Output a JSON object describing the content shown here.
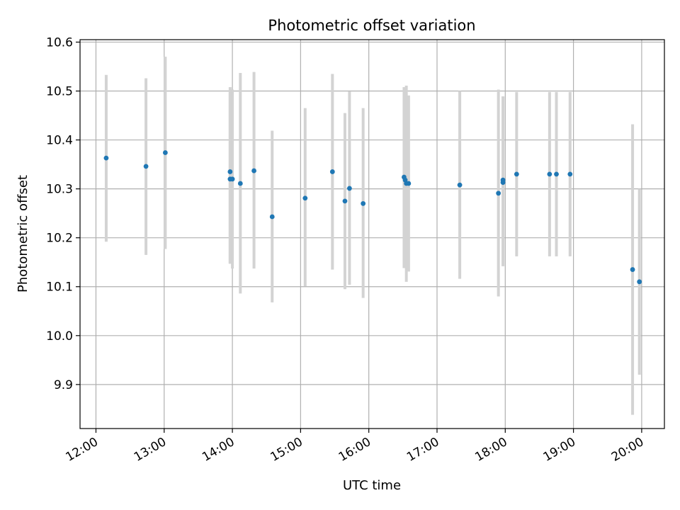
{
  "chart_data": {
    "type": "scatter",
    "title": "Photometric offset variation",
    "xlabel": "UTC time",
    "ylabel": "Photometric offset",
    "xlim": [
      "11:46",
      "20:20"
    ],
    "ylim": [
      9.81,
      10.605
    ],
    "x_ticks": [
      "12:00",
      "13:00",
      "14:00",
      "15:00",
      "16:00",
      "17:00",
      "18:00",
      "19:00",
      "20:00"
    ],
    "y_ticks": [
      9.9,
      10.0,
      10.1,
      10.2,
      10.3,
      10.4,
      10.5,
      10.6
    ],
    "y_tick_labels": [
      "9.9",
      "10.0",
      "10.1",
      "10.2",
      "10.3",
      "10.4",
      "10.5",
      "10.6"
    ],
    "grid": true,
    "point_color": "#1f77b4",
    "errorbar_color": "#d3d3d3",
    "points": [
      {
        "time": "12:09",
        "y": 10.363,
        "low": 10.192,
        "high": 10.533
      },
      {
        "time": "12:44",
        "y": 10.346,
        "low": 10.165,
        "high": 10.526
      },
      {
        "time": "13:01",
        "y": 10.374,
        "low": 10.177,
        "high": 10.57
      },
      {
        "time": "13:58",
        "y": 10.335,
        "low": 10.147,
        "high": 10.498
      },
      {
        "time": "13:58",
        "y": 10.32,
        "low": 10.147,
        "high": 10.508
      },
      {
        "time": "14:00",
        "y": 10.32,
        "low": 10.137,
        "high": 10.503
      },
      {
        "time": "14:07",
        "y": 10.311,
        "low": 10.086,
        "high": 10.537
      },
      {
        "time": "14:19",
        "y": 10.337,
        "low": 10.137,
        "high": 10.539
      },
      {
        "time": "14:35",
        "y": 10.243,
        "low": 10.068,
        "high": 10.419
      },
      {
        "time": "15:04",
        "y": 10.281,
        "low": 10.101,
        "high": 10.465
      },
      {
        "time": "15:28",
        "y": 10.335,
        "low": 10.135,
        "high": 10.535
      },
      {
        "time": "15:39",
        "y": 10.275,
        "low": 10.095,
        "high": 10.455
      },
      {
        "time": "15:43",
        "y": 10.301,
        "low": 10.104,
        "high": 10.499
      },
      {
        "time": "15:55",
        "y": 10.27,
        "low": 10.077,
        "high": 10.465
      },
      {
        "time": "16:31",
        "y": 10.324,
        "low": 10.138,
        "high": 10.508
      },
      {
        "time": "16:32",
        "y": 10.318,
        "low": 10.138,
        "high": 10.508
      },
      {
        "time": "16:33",
        "y": 10.311,
        "low": 10.11,
        "high": 10.511
      },
      {
        "time": "16:35",
        "y": 10.311,
        "low": 10.131,
        "high": 10.491
      },
      {
        "time": "17:20",
        "y": 10.308,
        "low": 10.116,
        "high": 10.5
      },
      {
        "time": "17:54",
        "y": 10.291,
        "low": 10.08,
        "high": 10.503
      },
      {
        "time": "17:58",
        "y": 10.313,
        "low": 10.142,
        "high": 10.489
      },
      {
        "time": "17:58",
        "y": 10.318,
        "low": 10.142,
        "high": 10.489
      },
      {
        "time": "18:10",
        "y": 10.33,
        "low": 10.162,
        "high": 10.498
      },
      {
        "time": "18:39",
        "y": 10.33,
        "low": 10.162,
        "high": 10.498
      },
      {
        "time": "18:45",
        "y": 10.33,
        "low": 10.162,
        "high": 10.498
      },
      {
        "time": "18:57",
        "y": 10.33,
        "low": 10.162,
        "high": 10.498
      },
      {
        "time": "19:52",
        "y": 10.135,
        "low": 9.838,
        "high": 10.432
      },
      {
        "time": "19:58",
        "y": 10.11,
        "low": 9.92,
        "high": 10.3
      }
    ]
  }
}
